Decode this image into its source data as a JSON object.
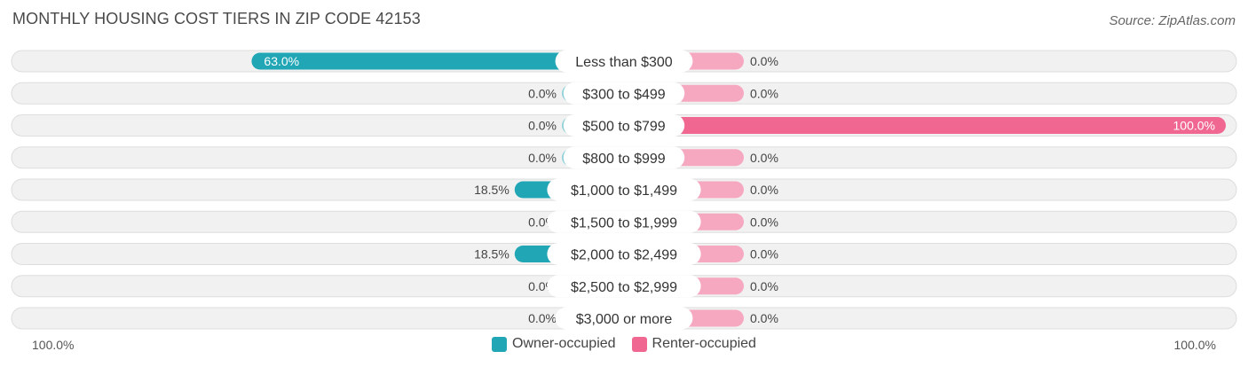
{
  "title": "MONTHLY HOUSING COST TIERS IN ZIP CODE 42153",
  "source": "Source: ZipAtlas.com",
  "colors": {
    "owner": "#21a6b5",
    "owner_light": "#8fd0d7",
    "renter": "#f06892",
    "renter_light": "#f7a8c1",
    "row_bg": "#f1f1f1",
    "row_border": "#dddddd"
  },
  "legend": {
    "owner_label": "Owner-occupied",
    "renter_label": "Renter-occupied"
  },
  "axis": {
    "left_label": "100.0%",
    "right_label": "100.0%"
  },
  "chart_data": {
    "type": "bar",
    "orientation": "diverging-horizontal",
    "title": "MONTHLY HOUSING COST TIERS IN ZIP CODE 42153",
    "categories": [
      "Less than $300",
      "$300 to $499",
      "$500 to $799",
      "$800 to $999",
      "$1,000 to $1,499",
      "$1,500 to $1,999",
      "$2,000 to $2,499",
      "$2,500 to $2,999",
      "$3,000 or more"
    ],
    "series": [
      {
        "name": "Owner-occupied",
        "values": [
          63.0,
          0.0,
          0.0,
          0.0,
          18.5,
          0.0,
          18.5,
          0.0,
          0.0
        ],
        "labels": [
          "63.0%",
          "0.0%",
          "0.0%",
          "0.0%",
          "18.5%",
          "0.0%",
          "18.5%",
          "0.0%",
          "0.0%"
        ]
      },
      {
        "name": "Renter-occupied",
        "values": [
          0.0,
          0.0,
          100.0,
          0.0,
          0.0,
          0.0,
          0.0,
          0.0,
          0.0
        ],
        "labels": [
          "0.0%",
          "0.0%",
          "100.0%",
          "0.0%",
          "0.0%",
          "0.0%",
          "0.0%",
          "0.0%",
          "0.0%"
        ]
      }
    ],
    "xlim": [
      0,
      100
    ],
    "legend_position": "bottom-center"
  }
}
